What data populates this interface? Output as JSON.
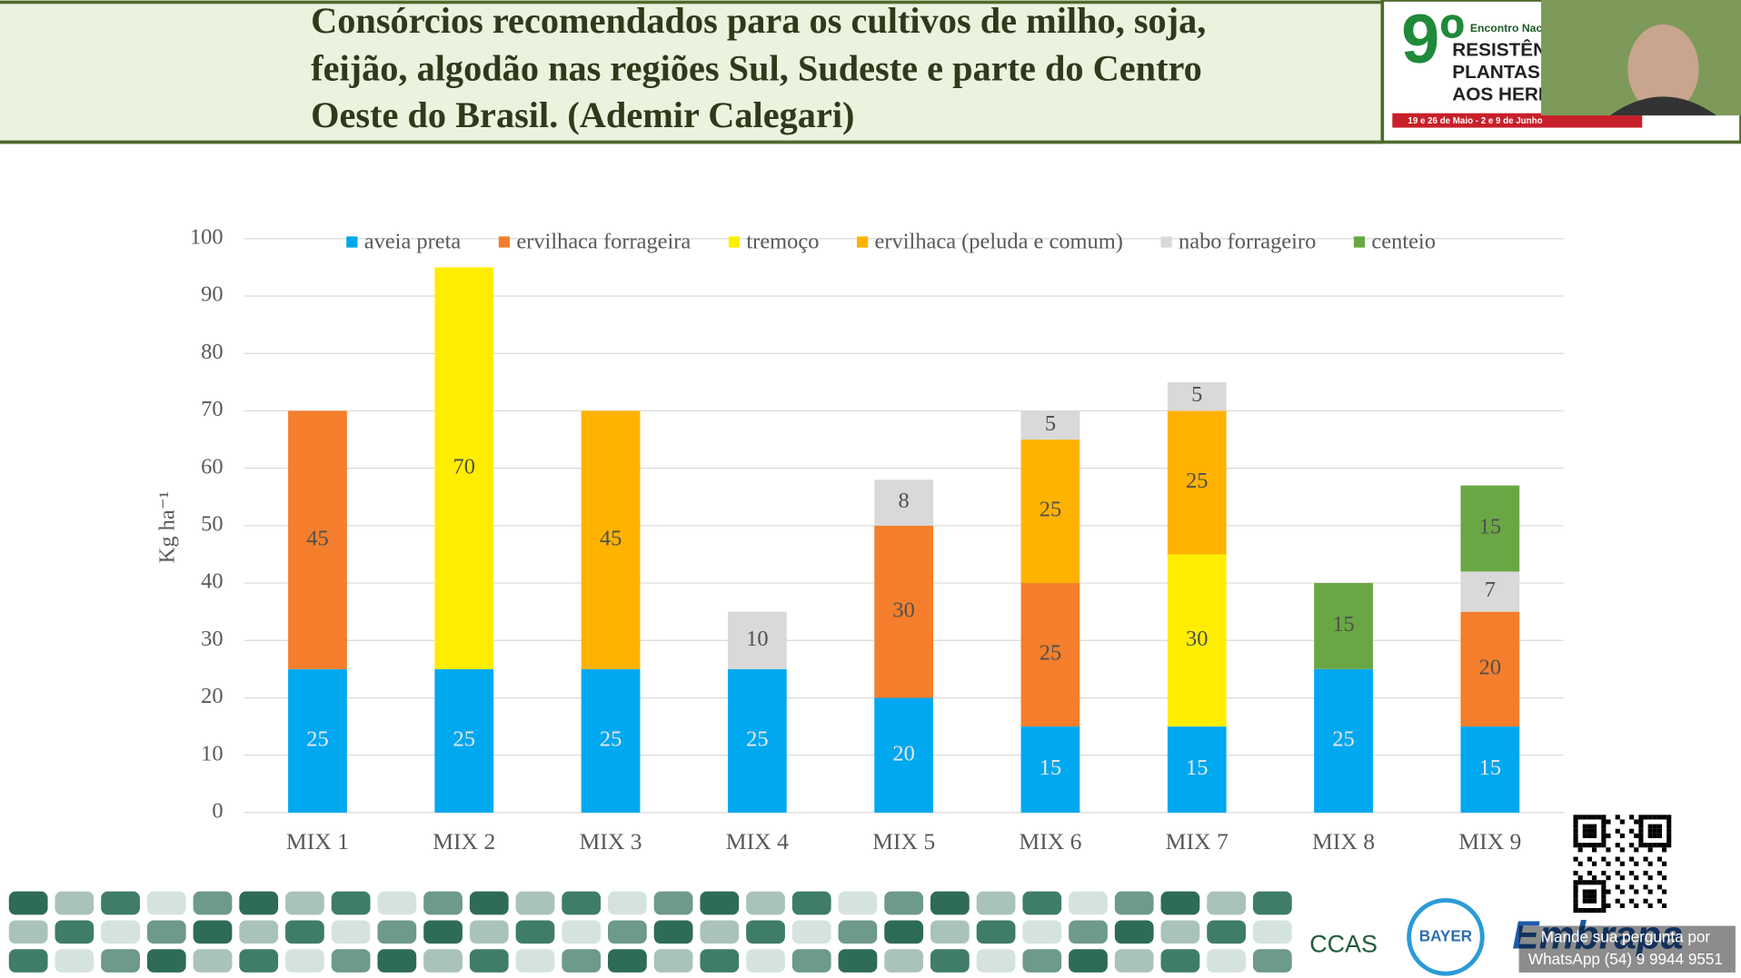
{
  "slide": {
    "title_lines": [
      "Consórcios recomendados para os cultivos de milho, soja,",
      "feijão, algodão nas regiões Sul, Sudeste e parte do Centro",
      "Oeste do Brasil. (Ademir Calegari)"
    ],
    "event": {
      "number": "9º",
      "name_top": "Encontro Naci",
      "lines": [
        "RESISTÊNC",
        "PLANTAS D",
        "AOS HERBI"
      ],
      "dates": "19 e 26 de Maio - 2 e 9 de Junho"
    },
    "logos": [
      "CCAS",
      "BAYER",
      "Embrapa"
    ],
    "whatsapp": [
      "Mande sua pergunta por",
      "WhatsApp (54) 9 9944 9551"
    ]
  },
  "chart_data": {
    "type": "stacked_bar",
    "y_label": "Kg ha⁻¹",
    "categories": [
      "MIX 1",
      "MIX 2",
      "MIX 3",
      "MIX 4",
      "MIX 5",
      "MIX 6",
      "MIX 7",
      "MIX 8",
      "MIX 9"
    ],
    "series": [
      {
        "name": "aveia preta",
        "color": "#00a8f0",
        "values": [
          25,
          25,
          25,
          25,
          20,
          15,
          15,
          25,
          15
        ]
      },
      {
        "name": "ervilhaca forrageira",
        "color": "#f47e2b",
        "values": [
          45,
          null,
          null,
          null,
          30,
          25,
          null,
          null,
          20
        ]
      },
      {
        "name": "tremoço",
        "color": "#ffee00",
        "values": [
          null,
          70,
          null,
          null,
          null,
          null,
          30,
          null,
          null
        ]
      },
      {
        "name": "ervilhaca (peluda e comum)",
        "color": "#ffb300",
        "values": [
          null,
          null,
          45,
          null,
          null,
          25,
          25,
          null,
          null
        ]
      },
      {
        "name": "nabo forrageiro",
        "color": "#d9d9d9",
        "values": [
          null,
          null,
          null,
          10,
          8,
          5,
          5,
          null,
          7
        ]
      },
      {
        "name": "centeio",
        "color": "#69a744",
        "values": [
          null,
          null,
          null,
          null,
          null,
          null,
          null,
          15,
          15
        ]
      }
    ],
    "ylim": [
      0,
      100
    ],
    "yticks": [
      0,
      10,
      20,
      30,
      40,
      50,
      60,
      70,
      80,
      90,
      100
    ],
    "grid": true,
    "legend": "top"
  }
}
